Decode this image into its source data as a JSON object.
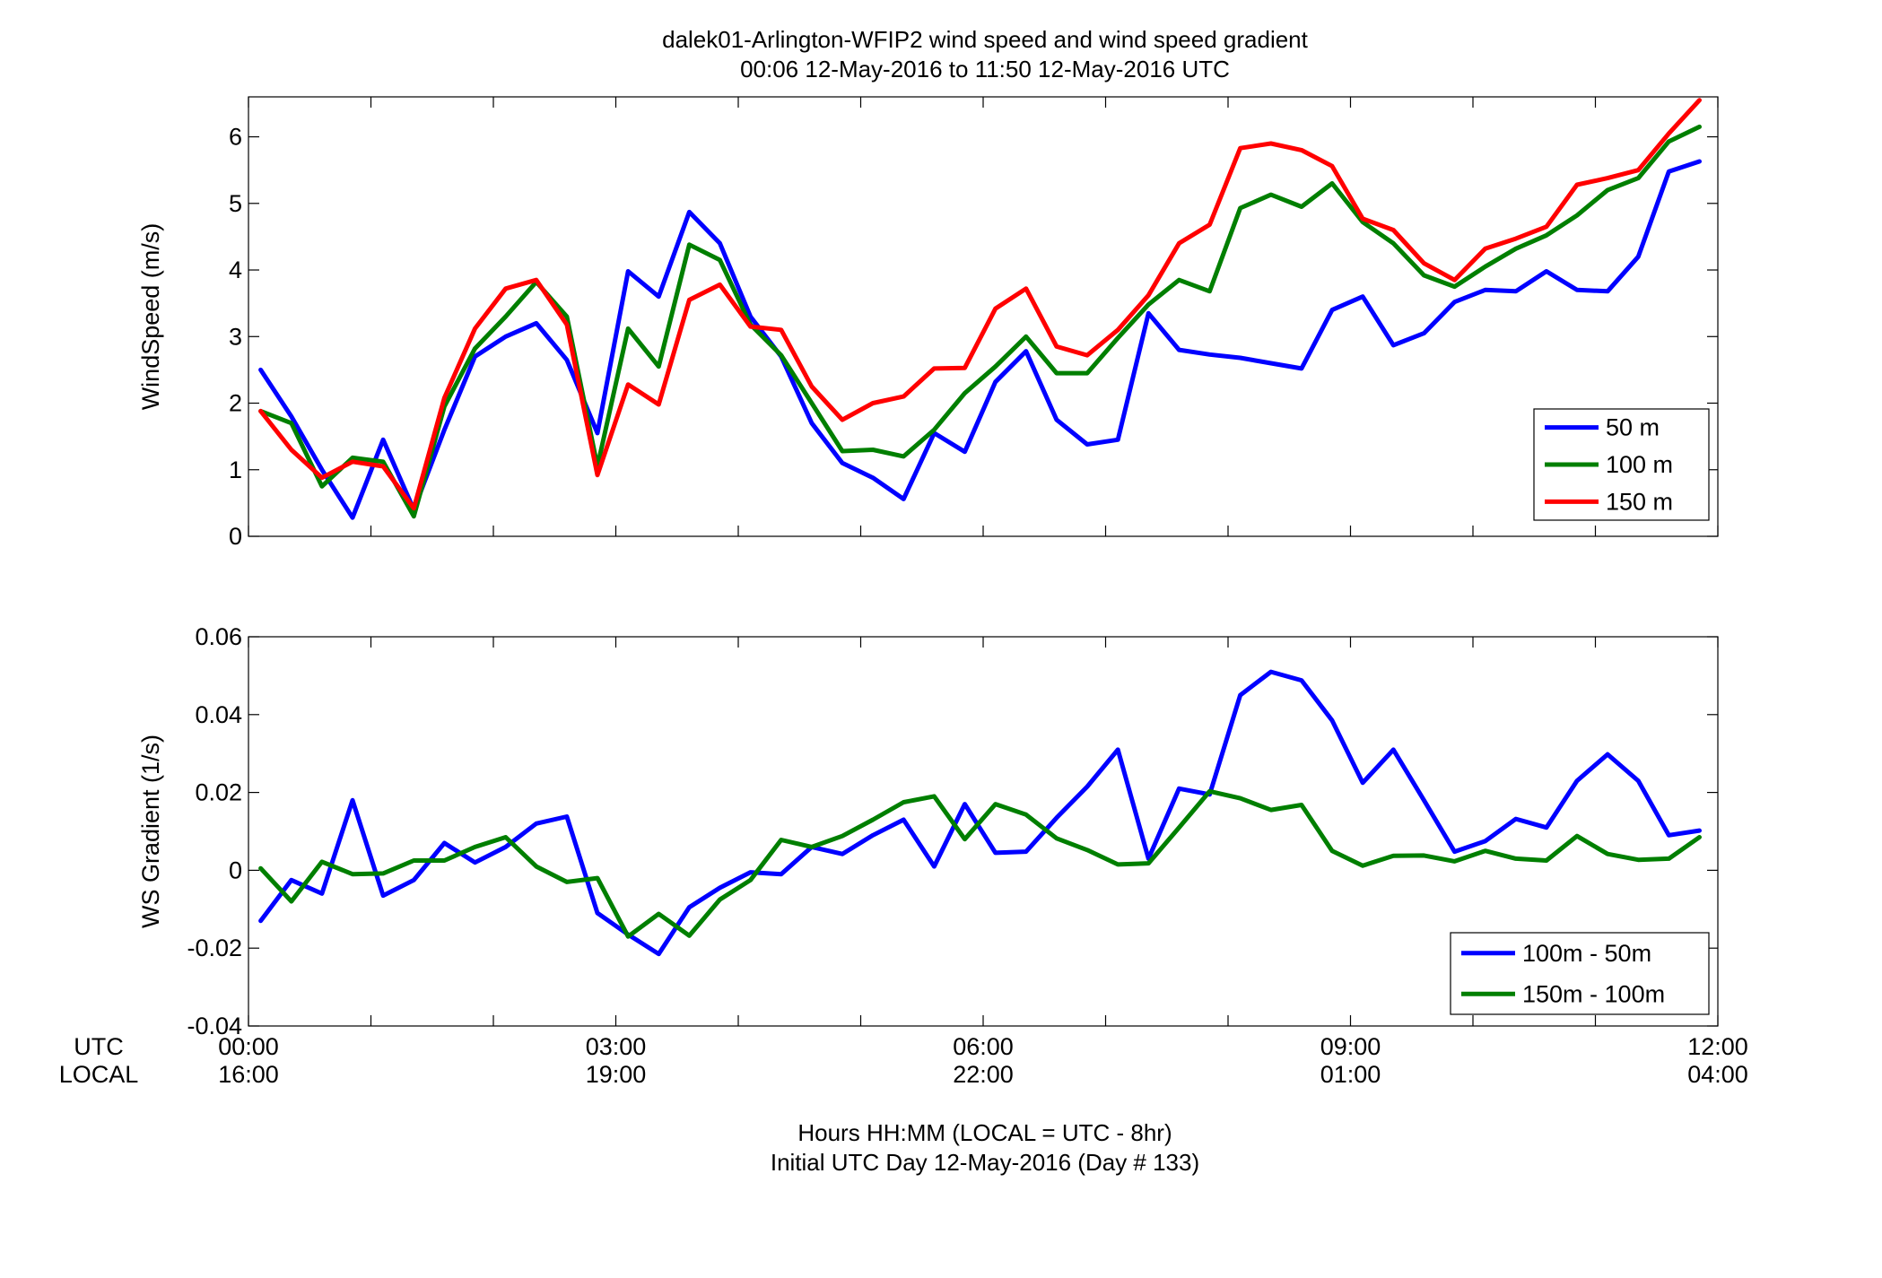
{
  "figure": {
    "title_line1": "dalek01-Arlington-WFIP2  wind speed and wind speed gradient",
    "title_line2": "00:06 12-May-2016 to 11:50 12-May-2016  UTC",
    "xlabel_line1": "Hours HH:MM  (LOCAL = UTC - 8hr)",
    "xlabel_line2": "Initial UTC Day 12-May-2016 (Day # 133)",
    "row_label_utc": "UTC",
    "row_label_local": "LOCAL",
    "x_ticks_utc": [
      "00:00",
      "03:00",
      "06:00",
      "09:00",
      "12:00"
    ],
    "x_ticks_local": [
      "16:00",
      "19:00",
      "22:00",
      "01:00",
      "04:00"
    ]
  },
  "colors": {
    "blue": "#0000ff",
    "green": "#007f00",
    "red": "#ff0000"
  },
  "chart_data": [
    {
      "type": "line",
      "ylabel": "WindSpeed (m/s)",
      "xlim": [
        0,
        12
      ],
      "ylim": [
        0,
        6.6
      ],
      "yticks": [
        0,
        1,
        2,
        3,
        4,
        5,
        6
      ],
      "ytick_labels": [
        "0",
        "1",
        "2",
        "3",
        "4",
        "5",
        "6"
      ],
      "grid": false,
      "legend_position": "bottom-right",
      "x": [
        0.1,
        0.35,
        0.6,
        0.85,
        1.1,
        1.35,
        1.6,
        1.85,
        2.1,
        2.35,
        2.6,
        2.85,
        3.1,
        3.35,
        3.6,
        3.85,
        4.1,
        4.35,
        4.6,
        4.85,
        5.1,
        5.35,
        5.6,
        5.85,
        6.1,
        6.35,
        6.6,
        6.85,
        7.1,
        7.35,
        7.6,
        7.85,
        8.1,
        8.35,
        8.6,
        8.85,
        9.1,
        9.35,
        9.6,
        9.85,
        10.1,
        10.35,
        10.6,
        10.85,
        11.1,
        11.35,
        11.6,
        11.85
      ],
      "series": [
        {
          "name": "50 m",
          "color": "#0000ff",
          "values": [
            2.5,
            1.8,
            1.0,
            0.28,
            1.45,
            0.4,
            1.6,
            2.7,
            3.0,
            3.2,
            2.65,
            1.55,
            3.98,
            3.6,
            4.87,
            4.4,
            3.3,
            2.7,
            1.7,
            1.1,
            0.88,
            0.56,
            1.55,
            1.27,
            2.32,
            2.78,
            1.75,
            1.38,
            1.45,
            3.35,
            2.8,
            2.73,
            2.68,
            2.6,
            2.52,
            3.4,
            3.6,
            2.87,
            3.05,
            3.52,
            3.7,
            3.68,
            3.98,
            3.7,
            3.68,
            4.2,
            5.48,
            5.63
          ]
        },
        {
          "name": "100 m",
          "color": "#007f00",
          "values": [
            1.88,
            1.7,
            0.75,
            1.18,
            1.12,
            0.3,
            1.95,
            2.82,
            3.3,
            3.82,
            3.3,
            1.05,
            3.12,
            2.55,
            4.38,
            4.15,
            3.18,
            2.72,
            2.0,
            1.28,
            1.3,
            1.2,
            1.6,
            2.15,
            2.55,
            3.0,
            2.45,
            2.45,
            2.98,
            3.48,
            3.85,
            3.68,
            4.93,
            5.13,
            4.95,
            5.3,
            4.72,
            4.4,
            3.92,
            3.75,
            4.05,
            4.32,
            4.52,
            4.82,
            5.2,
            5.38,
            5.93,
            6.15
          ]
        },
        {
          "name": "150 m",
          "color": "#ff0000",
          "values": [
            1.88,
            1.3,
            0.88,
            1.12,
            1.05,
            0.42,
            2.08,
            3.12,
            3.72,
            3.85,
            3.18,
            0.92,
            2.28,
            1.98,
            3.55,
            3.78,
            3.15,
            3.1,
            2.25,
            1.75,
            2.0,
            2.1,
            2.52,
            2.53,
            3.42,
            3.72,
            2.85,
            2.72,
            3.1,
            3.62,
            4.4,
            4.68,
            5.83,
            5.9,
            5.8,
            5.56,
            4.77,
            4.6,
            4.1,
            3.85,
            4.32,
            4.47,
            4.65,
            5.28,
            5.38,
            5.5,
            6.05,
            6.55
          ]
        }
      ]
    },
    {
      "type": "line",
      "ylabel": "WS Gradient (1/s)",
      "xlim": [
        0,
        12
      ],
      "ylim": [
        -0.04,
        0.06
      ],
      "yticks": [
        -0.04,
        -0.02,
        0,
        0.02,
        0.04,
        0.06
      ],
      "ytick_labels": [
        "-0.04",
        "-0.02",
        "0",
        "0.02",
        "0.04",
        "0.06"
      ],
      "grid": false,
      "legend_position": "bottom-right",
      "x": [
        0.1,
        0.35,
        0.6,
        0.85,
        1.1,
        1.35,
        1.6,
        1.85,
        2.1,
        2.35,
        2.6,
        2.85,
        3.1,
        3.35,
        3.6,
        3.85,
        4.1,
        4.35,
        4.6,
        4.85,
        5.1,
        5.35,
        5.6,
        5.85,
        6.1,
        6.35,
        6.6,
        6.85,
        7.1,
        7.35,
        7.6,
        7.85,
        8.1,
        8.35,
        8.6,
        8.85,
        9.1,
        9.35,
        9.6,
        9.85,
        10.1,
        10.35,
        10.6,
        10.85,
        11.1,
        11.35,
        11.6,
        11.85
      ],
      "series": [
        {
          "name": "100m - 50m",
          "color": "#0000ff",
          "values": [
            -0.013,
            -0.0025,
            -0.006,
            0.018,
            -0.0065,
            -0.0025,
            0.007,
            0.002,
            0.006,
            0.012,
            0.0138,
            -0.011,
            -0.0165,
            -0.0215,
            -0.0095,
            -0.0045,
            -0.0005,
            -0.001,
            0.006,
            0.0042,
            0.009,
            0.013,
            0.001,
            0.017,
            0.0045,
            0.0048,
            0.0135,
            0.0215,
            0.031,
            0.003,
            0.021,
            0.0195,
            0.045,
            0.051,
            0.0488,
            0.0385,
            0.0225,
            0.031,
            0.018,
            0.0048,
            0.0075,
            0.0132,
            0.011,
            0.023,
            0.0298,
            0.023,
            0.009,
            0.0102
          ]
        },
        {
          "name": "150m - 100m",
          "color": "#007f00",
          "values": [
            0.0005,
            -0.008,
            0.0022,
            -0.001,
            -0.0008,
            0.0025,
            0.0025,
            0.006,
            0.0085,
            0.001,
            -0.003,
            -0.002,
            -0.017,
            -0.0112,
            -0.0168,
            -0.0075,
            -0.0025,
            0.0078,
            0.006,
            0.0088,
            0.013,
            0.0175,
            0.019,
            0.008,
            0.017,
            0.0143,
            0.0082,
            0.0052,
            0.0015,
            0.0018,
            0.011,
            0.0203,
            0.0185,
            0.0155,
            0.0168,
            0.005,
            0.0012,
            0.0037,
            0.0038,
            0.0023,
            0.005,
            0.003,
            0.0025,
            0.0088,
            0.0042,
            0.0027,
            0.003,
            0.0085
          ]
        }
      ]
    }
  ]
}
